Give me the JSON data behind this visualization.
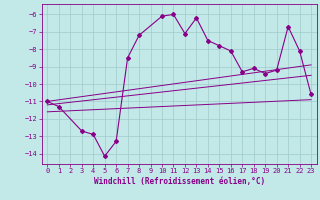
{
  "xlabel": "Windchill (Refroidissement éolien,°C)",
  "ylabel": "",
  "bg_color": "#c2e8e8",
  "grid_color": "#a0cccc",
  "line_color": "#880088",
  "xlim": [
    -0.5,
    23.5
  ],
  "ylim": [
    -14.6,
    -5.4
  ],
  "yticks": [
    -14,
    -13,
    -12,
    -11,
    -10,
    -9,
    -8,
    -7,
    -6
  ],
  "xticks": [
    0,
    1,
    2,
    3,
    4,
    5,
    6,
    7,
    8,
    9,
    10,
    11,
    12,
    13,
    14,
    15,
    16,
    17,
    18,
    19,
    20,
    21,
    22,
    23
  ],
  "main_line_x": [
    0,
    1,
    3,
    4,
    5,
    6,
    7,
    8,
    10,
    11,
    12,
    13,
    14,
    15,
    16,
    17,
    18,
    19,
    20,
    21,
    22,
    23
  ],
  "main_line_y": [
    -11.0,
    -11.3,
    -12.7,
    -12.9,
    -14.15,
    -13.3,
    -8.5,
    -7.2,
    -6.1,
    -6.0,
    -7.1,
    -6.2,
    -7.5,
    -7.8,
    -8.1,
    -9.3,
    -9.1,
    -9.4,
    -9.2,
    -6.7,
    -8.1,
    -10.6
  ],
  "line2_x": [
    0,
    23
  ],
  "line2_y": [
    -11.0,
    -8.9
  ],
  "line3_x": [
    0,
    23
  ],
  "line3_y": [
    -11.2,
    -9.5
  ],
  "line4_x": [
    0,
    23
  ],
  "line4_y": [
    -11.6,
    -10.9
  ]
}
